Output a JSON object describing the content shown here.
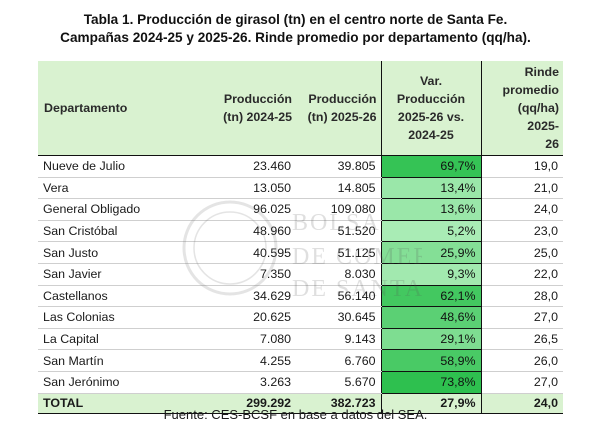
{
  "title": {
    "line1": "Tabla 1. Producción de girasol (tn) en el centro norte de Santa Fe.",
    "line2": "Campañas 2024-25 y 2025-26. Rinde promedio por departamento (qq/ha)."
  },
  "columns": {
    "departamento": "Departamento",
    "prod_2425": [
      "Producción",
      "(tn)  2024-25"
    ],
    "prod_2526": [
      "Producción",
      "(tn)  2025-26"
    ],
    "var": [
      "Var.",
      "Producción",
      "2025-26 vs.",
      "2024-25"
    ],
    "rinde": [
      "Rinde",
      "promedio",
      "(qq/ha)  2025-",
      "26"
    ]
  },
  "rows": [
    {
      "departamento": "Nueve de Julio",
      "prod_2425": "23.460",
      "prod_2526": "39.805",
      "var": "69,7%",
      "var_value": 69.7,
      "rinde": "19,0"
    },
    {
      "departamento": "Vera",
      "prod_2425": "13.050",
      "prod_2526": "14.805",
      "var": "13,4%",
      "var_value": 13.4,
      "rinde": "21,0"
    },
    {
      "departamento": "General Obligado",
      "prod_2425": "96.025",
      "prod_2526": "109.080",
      "var": "13,6%",
      "var_value": 13.6,
      "rinde": "24,0"
    },
    {
      "departamento": "San Cristóbal",
      "prod_2425": "48.960",
      "prod_2526": "51.520",
      "var": "5,2%",
      "var_value": 5.2,
      "rinde": "23,0"
    },
    {
      "departamento": "San Justo",
      "prod_2425": "40.595",
      "prod_2526": "51.125",
      "var": "25,9%",
      "var_value": 25.9,
      "rinde": "25,0"
    },
    {
      "departamento": "San Javier",
      "prod_2425": "7.350",
      "prod_2526": "8.030",
      "var": "9,3%",
      "var_value": 9.3,
      "rinde": "22,0"
    },
    {
      "departamento": "Castellanos",
      "prod_2425": "34.629",
      "prod_2526": "56.140",
      "var": "62,1%",
      "var_value": 62.1,
      "rinde": "28,0"
    },
    {
      "departamento": "Las Colonias",
      "prod_2425": "20.625",
      "prod_2526": "30.645",
      "var": "48,6%",
      "var_value": 48.6,
      "rinde": "27,0"
    },
    {
      "departamento": "La Capital",
      "prod_2425": "7.080",
      "prod_2526": "9.143",
      "var": "29,1%",
      "var_value": 29.1,
      "rinde": "26,5"
    },
    {
      "departamento": "San Martín",
      "prod_2425": "4.255",
      "prod_2526": "6.760",
      "var": "58,9%",
      "var_value": 58.9,
      "rinde": "26,0"
    },
    {
      "departamento": "San Jerónimo",
      "prod_2425": "3.263",
      "prod_2526": "5.670",
      "var": "73,8%",
      "var_value": 73.8,
      "rinde": "27,0"
    }
  ],
  "total": {
    "departamento": "TOTAL",
    "prod_2425": "299.292",
    "prod_2526": "382.723",
    "var": "27,9%",
    "rinde": "24,0"
  },
  "colors": {
    "header_bg": "#d9f2d0",
    "var_low": "#a9ecb5",
    "var_high": "#2ec04f"
  },
  "watermark": {
    "line1": "BOLSA",
    "line2": "DE COMERCIO",
    "line3": "DE SANTA FE"
  },
  "source": "Fuente: CES-BCSF en base a datos del SEA."
}
